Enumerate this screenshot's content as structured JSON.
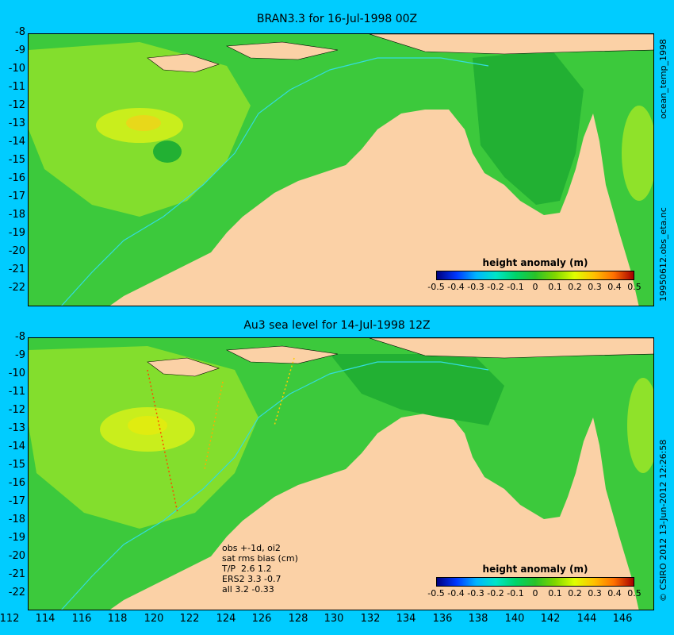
{
  "top_panel": {
    "title": "BRAN3.3 for 16-Jul-1998 00Z",
    "side_labels": [
      "ocean_temp_1998",
      "19950612.obs_eta.nc"
    ]
  },
  "bottom_panel": {
    "title": "Au3 sea level  for 14-Jul-1998 12Z",
    "side_labels": [
      "© CSIRO 2012  13-Jun-2012 12:26:58"
    ],
    "stats": [
      "obs +-1d, oi2",
      "sat rms bias (cm)",
      "T/P  2.6 1.2",
      "ERS2 3.3 -0.7",
      "all 3.2 -0.33"
    ]
  },
  "legend": {
    "title": "height anomaly  (m)",
    "ticks": [
      "-0.5",
      "-0.4",
      "-0.3",
      "-0.2",
      "-0.1",
      "0",
      "0.1",
      "0.2",
      "0.3",
      "0.4",
      "0.5"
    ],
    "range": [
      -0.5,
      0.5
    ]
  },
  "axes": {
    "y_ticks": [
      "-8",
      "-9",
      "-10",
      "-11",
      "-12",
      "-13",
      "-14",
      "-15",
      "-16",
      "-17",
      "-18",
      "-19",
      "-20",
      "-21",
      "-22"
    ],
    "x_ticks": [
      "112",
      "114",
      "116",
      "118",
      "120",
      "122",
      "124",
      "126",
      "128",
      "130",
      "132",
      "134",
      "136",
      "138",
      "140",
      "142",
      "144",
      "146"
    ],
    "lon_range": [
      112,
      147
    ],
    "lat_range": [
      -22.5,
      -8
    ]
  },
  "colors": {
    "background": "#00ccff",
    "land": "#fbd1a6",
    "sea_base": "#3cc93c",
    "sea_light": "#8fe22a",
    "sea_yellow": "#d6f51a",
    "sea_dark": "#1fae2e",
    "shelf_line": "#33dddd"
  }
}
